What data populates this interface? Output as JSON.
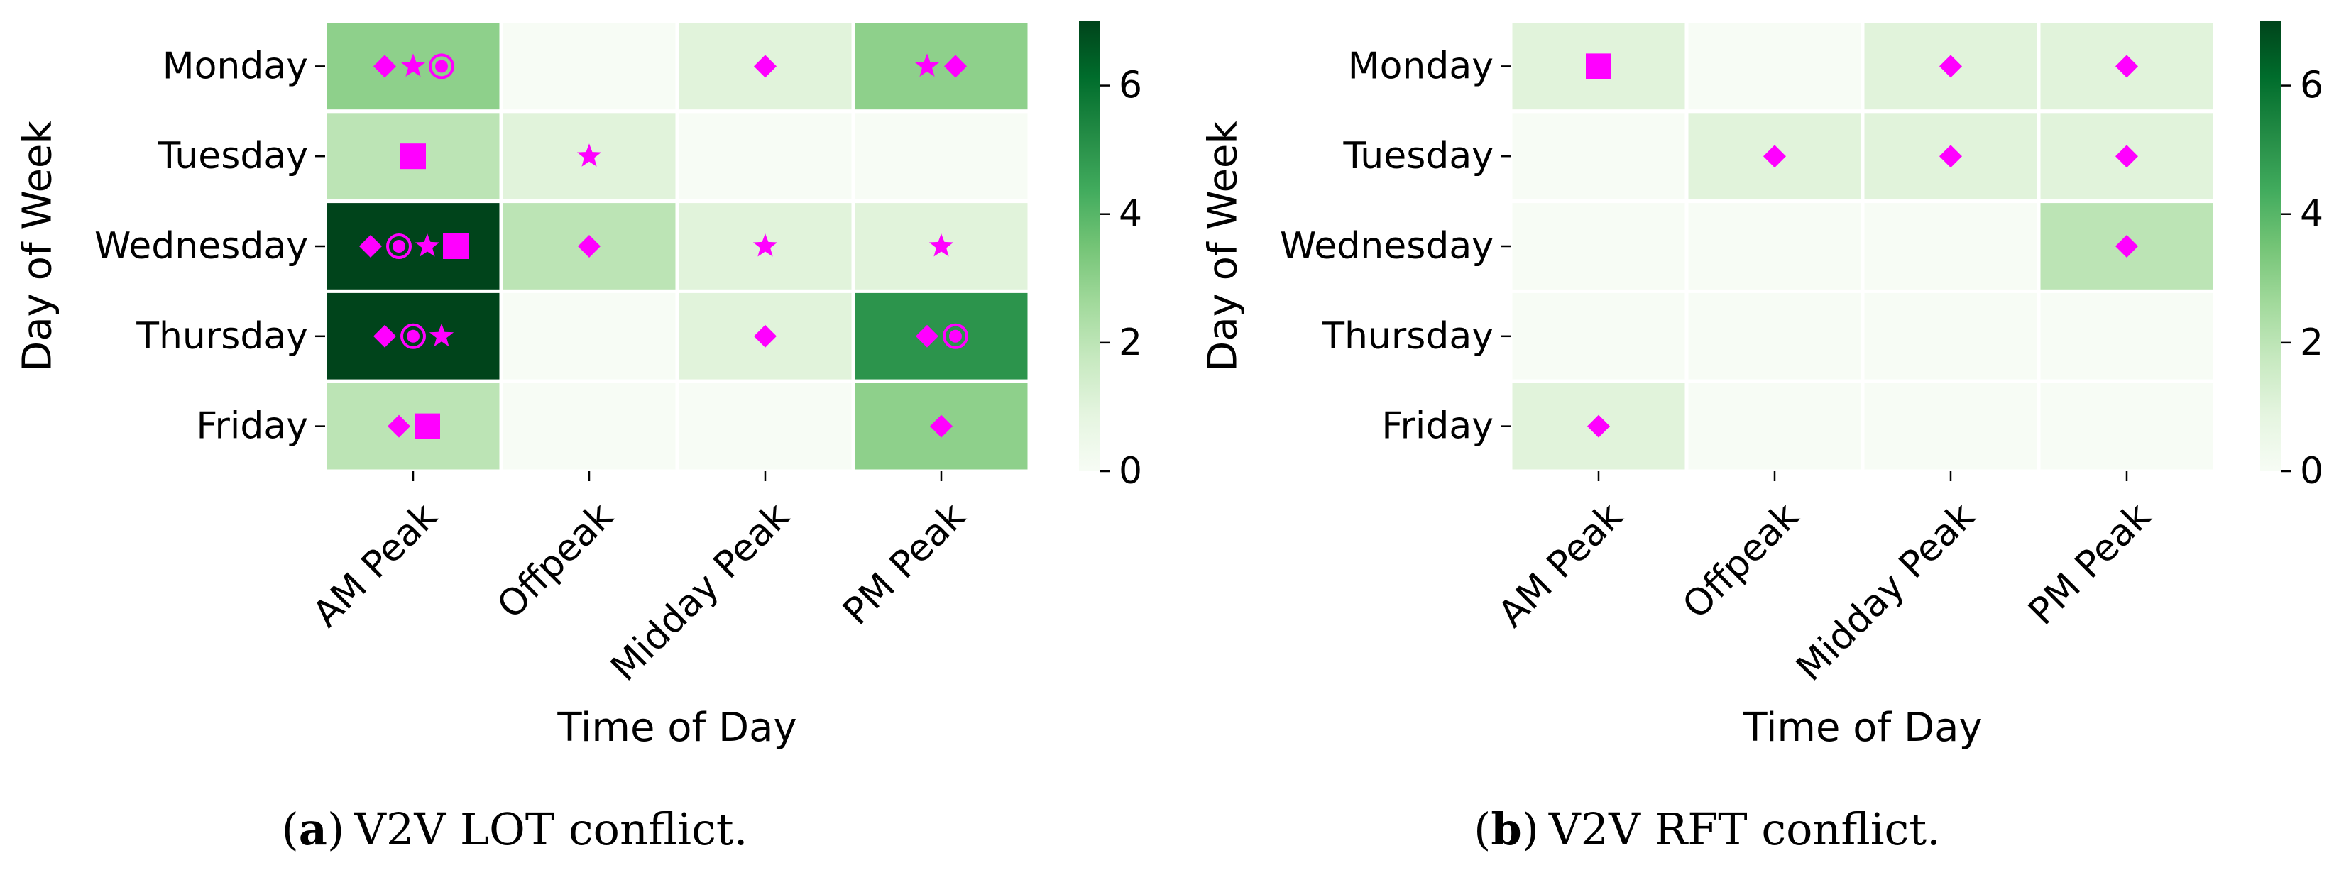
{
  "colors": {
    "marker": "#ff00ff",
    "scale": [
      "#f7fcf5",
      "#e5f5e0",
      "#c7e9c0",
      "#a1d99b",
      "#74c476",
      "#41ab5d",
      "#238b45",
      "#006d2c",
      "#00441b"
    ],
    "cell_border": "#ffffff"
  },
  "marker_icons": {
    "diamond": "diamond-icon",
    "star": "star-icon",
    "circle": "target-circle-icon",
    "square": "square-icon"
  },
  "chart_data": [
    {
      "type": "heatmap",
      "caption_letter": "a",
      "caption_open": "(",
      "caption_close": ")",
      "caption_text": "V2V LOT conflict.",
      "xlabel": "Time of Day",
      "ylabel": "Day of Week",
      "x_categories": [
        "AM Peak",
        "Offpeak",
        "Midday Peak",
        "PM Peak"
      ],
      "y_categories": [
        "Monday",
        "Tuesday",
        "Wednesday",
        "Thursday",
        "Friday"
      ],
      "values": [
        [
          3,
          0,
          1,
          3
        ],
        [
          2,
          1,
          0,
          0
        ],
        [
          7,
          2,
          1,
          1
        ],
        [
          7,
          0,
          1,
          5
        ],
        [
          2,
          0,
          0,
          3
        ]
      ],
      "markers": [
        [
          [
            "diamond",
            "star",
            "circle"
          ],
          [],
          [
            "diamond"
          ],
          [
            "star",
            "diamond"
          ]
        ],
        [
          [
            "square"
          ],
          [
            "star"
          ],
          [],
          []
        ],
        [
          [
            "diamond",
            "circle",
            "star",
            "square"
          ],
          [
            "diamond"
          ],
          [
            "star"
          ],
          [
            "star"
          ]
        ],
        [
          [
            "diamond",
            "circle",
            "star"
          ],
          [],
          [
            "diamond"
          ],
          [
            "diamond",
            "circle"
          ]
        ],
        [
          [
            "diamond",
            "square"
          ],
          [],
          [],
          [
            "diamond"
          ]
        ]
      ],
      "colorbar": {
        "vmin": 0,
        "vmax": 7,
        "ticks": [
          0,
          2,
          4,
          6
        ]
      }
    },
    {
      "type": "heatmap",
      "caption_letter": "b",
      "caption_open": "(",
      "caption_close": ")",
      "caption_text": "V2V RFT conflict.",
      "xlabel": "Time of Day",
      "ylabel": "Day of Week",
      "x_categories": [
        "AM Peak",
        "Offpeak",
        "Midday Peak",
        "PM Peak"
      ],
      "y_categories": [
        "Monday",
        "Tuesday",
        "Wednesday",
        "Thursday",
        "Friday"
      ],
      "values": [
        [
          1,
          0,
          1,
          1
        ],
        [
          0,
          1,
          1,
          1
        ],
        [
          0,
          0,
          0,
          2
        ],
        [
          0,
          0,
          0,
          0
        ],
        [
          1,
          0,
          0,
          0
        ]
      ],
      "markers": [
        [
          [
            "square"
          ],
          [],
          [
            "diamond"
          ],
          [
            "diamond"
          ]
        ],
        [
          [],
          [
            "diamond"
          ],
          [
            "diamond"
          ],
          [
            "diamond"
          ]
        ],
        [
          [],
          [],
          [],
          [
            "diamond"
          ]
        ],
        [
          [],
          [],
          [],
          []
        ],
        [
          [
            "diamond"
          ],
          [],
          [],
          []
        ]
      ],
      "colorbar": {
        "vmin": 0,
        "vmax": 7,
        "ticks": [
          0,
          2,
          4,
          6
        ]
      }
    }
  ]
}
